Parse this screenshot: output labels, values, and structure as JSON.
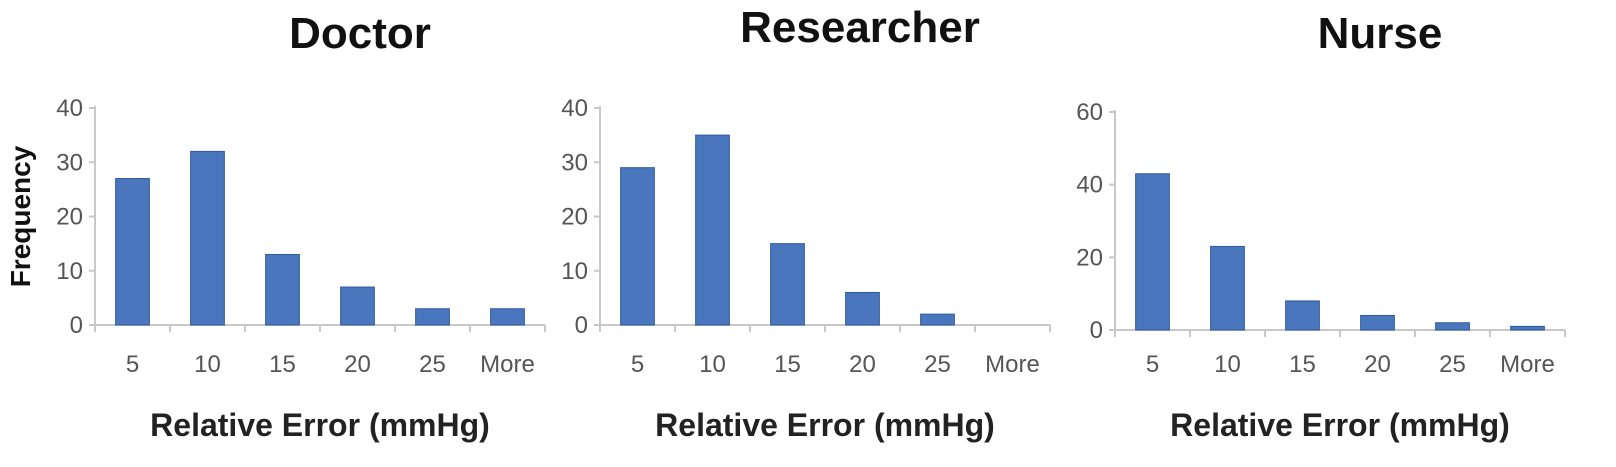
{
  "chart_data": [
    {
      "type": "bar",
      "title": "Doctor",
      "xlabel": "Relative Error (mmHg)",
      "ylabel": "Frequency",
      "categories": [
        "5",
        "10",
        "15",
        "20",
        "25",
        "More"
      ],
      "values": [
        27,
        32,
        13,
        7,
        3,
        3
      ],
      "ylim": [
        0,
        40
      ],
      "yticks": [
        0,
        10,
        20,
        30,
        40
      ],
      "grid": false,
      "colors": {
        "bar": "#4a76bd"
      }
    },
    {
      "type": "bar",
      "title": "Researcher",
      "xlabel": "Relative Error (mmHg)",
      "ylabel": "",
      "categories": [
        "5",
        "10",
        "15",
        "20",
        "25",
        "More"
      ],
      "values": [
        29,
        35,
        15,
        6,
        2,
        0
      ],
      "ylim": [
        0,
        40
      ],
      "yticks": [
        0,
        10,
        20,
        30,
        40
      ],
      "grid": false,
      "colors": {
        "bar": "#4a76bd"
      }
    },
    {
      "type": "bar",
      "title": "Nurse",
      "xlabel": "Relative Error (mmHg)",
      "ylabel": "",
      "categories": [
        "5",
        "10",
        "15",
        "20",
        "25",
        "More"
      ],
      "values": [
        43,
        23,
        8,
        4,
        2,
        1
      ],
      "ylim": [
        0,
        60
      ],
      "yticks": [
        0,
        20,
        40,
        60
      ],
      "grid": false,
      "colors": {
        "bar": "#4a76bd"
      }
    }
  ]
}
